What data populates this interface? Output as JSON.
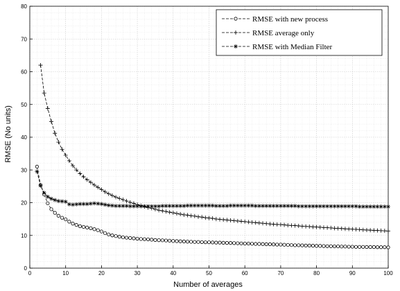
{
  "chart_data": {
    "type": "line",
    "title": "",
    "xlabel": "Number of averages",
    "ylabel": "RMSE (No units)",
    "xlim": [
      0,
      100
    ],
    "ylim": [
      0,
      80
    ],
    "xticks": [
      0,
      10,
      20,
      30,
      40,
      50,
      60,
      70,
      80,
      90,
      100
    ],
    "yticks": [
      0,
      10,
      20,
      30,
      40,
      50,
      60,
      70,
      80
    ],
    "grid": "major and minor, dotted",
    "legend_position": "top-right",
    "series": [
      {
        "name": "RMSE with new process",
        "marker": "circle",
        "line": "dashed",
        "color": "#000000",
        "x": [
          2,
          3,
          4,
          5,
          6,
          7,
          8,
          9,
          10,
          11,
          12,
          13,
          14,
          15,
          16,
          17,
          18,
          19,
          20,
          21,
          22,
          23,
          24,
          25,
          26,
          27,
          28,
          29,
          30,
          31,
          32,
          33,
          34,
          35,
          36,
          37,
          38,
          39,
          40,
          41,
          42,
          43,
          44,
          45,
          46,
          47,
          48,
          49,
          50,
          51,
          52,
          53,
          54,
          55,
          56,
          57,
          58,
          59,
          60,
          61,
          62,
          63,
          64,
          65,
          66,
          67,
          68,
          69,
          70,
          71,
          72,
          73,
          74,
          75,
          76,
          77,
          78,
          79,
          80,
          81,
          82,
          83,
          84,
          85,
          86,
          87,
          88,
          89,
          90,
          91,
          92,
          93,
          94,
          95,
          96,
          97,
          98,
          99,
          100
        ],
        "y": [
          31.0,
          25.4,
          22.5,
          19.8,
          18.0,
          16.9,
          16.0,
          15.4,
          14.9,
          14.2,
          13.6,
          13.2,
          12.8,
          12.6,
          12.4,
          12.2,
          11.9,
          11.6,
          11.2,
          10.7,
          10.3,
          10.0,
          9.8,
          9.6,
          9.4,
          9.3,
          9.2,
          9.1,
          9.0,
          8.9,
          8.85,
          8.8,
          8.7,
          8.6,
          8.55,
          8.5,
          8.45,
          8.4,
          8.3,
          8.25,
          8.2,
          8.15,
          8.1,
          8.05,
          8.0,
          8.0,
          7.95,
          7.9,
          7.9,
          7.85,
          7.8,
          7.8,
          7.75,
          7.7,
          7.7,
          7.65,
          7.6,
          7.55,
          7.5,
          7.5,
          7.45,
          7.4,
          7.4,
          7.35,
          7.3,
          7.3,
          7.25,
          7.2,
          7.2,
          7.15,
          7.1,
          7.05,
          7.0,
          7.0,
          6.95,
          6.9,
          6.9,
          6.85,
          6.8,
          6.8,
          6.75,
          6.7,
          6.7,
          6.65,
          6.65,
          6.6,
          6.6,
          6.55,
          6.55,
          6.5,
          6.5,
          6.5,
          6.45,
          6.45,
          6.45,
          6.4,
          6.4,
          6.4,
          6.35
        ]
      },
      {
        "name": "RMSE average only",
        "marker": "plus",
        "line": "dashed",
        "color": "#000000",
        "x": [
          3,
          4,
          5,
          6,
          7,
          8,
          9,
          10,
          11,
          12,
          13,
          14,
          15,
          16,
          17,
          18,
          19,
          20,
          21,
          22,
          23,
          24,
          25,
          26,
          27,
          28,
          29,
          30,
          31,
          32,
          33,
          34,
          35,
          36,
          37,
          38,
          39,
          40,
          41,
          42,
          43,
          44,
          45,
          46,
          47,
          48,
          49,
          50,
          51,
          52,
          53,
          54,
          55,
          56,
          57,
          58,
          59,
          60,
          61,
          62,
          63,
          64,
          65,
          66,
          67,
          68,
          69,
          70,
          71,
          72,
          73,
          74,
          75,
          76,
          77,
          78,
          79,
          80,
          81,
          82,
          83,
          84,
          85,
          86,
          87,
          88,
          89,
          90,
          91,
          92,
          93,
          94,
          95,
          96,
          97,
          98,
          99,
          100
        ],
        "y": [
          62.0,
          53.5,
          48.8,
          44.8,
          41.2,
          38.5,
          36.3,
          34.5,
          32.8,
          31.3,
          30.0,
          28.9,
          27.9,
          27.0,
          26.2,
          25.4,
          24.7,
          24.0,
          23.3,
          22.7,
          22.2,
          21.7,
          21.3,
          20.9,
          20.5,
          20.1,
          19.8,
          19.4,
          19.1,
          18.8,
          18.5,
          18.3,
          18.0,
          17.7,
          17.5,
          17.3,
          17.1,
          16.9,
          16.7,
          16.5,
          16.3,
          16.2,
          16.0,
          15.9,
          15.7,
          15.6,
          15.4,
          15.3,
          15.2,
          15.0,
          14.9,
          14.8,
          14.7,
          14.6,
          14.5,
          14.4,
          14.3,
          14.2,
          14.1,
          14.0,
          13.9,
          13.8,
          13.7,
          13.6,
          13.5,
          13.4,
          13.35,
          13.3,
          13.2,
          13.1,
          13.05,
          13.0,
          12.9,
          12.8,
          12.75,
          12.7,
          12.6,
          12.55,
          12.5,
          12.4,
          12.35,
          12.3,
          12.2,
          12.15,
          12.1,
          12.0,
          11.95,
          11.9,
          11.85,
          11.8,
          11.7,
          11.65,
          11.6,
          11.55,
          11.5,
          11.45,
          11.4,
          11.3
        ]
      },
      {
        "name": "RMSE with Median Filter",
        "marker": "asterisk",
        "line": "dashed",
        "color": "#000000",
        "x": [
          2,
          3,
          4,
          5,
          6,
          7,
          8,
          9,
          10,
          11,
          12,
          13,
          14,
          15,
          16,
          17,
          18,
          19,
          20,
          21,
          22,
          23,
          24,
          25,
          26,
          27,
          28,
          29,
          30,
          31,
          32,
          33,
          34,
          35,
          36,
          37,
          38,
          39,
          40,
          41,
          42,
          43,
          44,
          45,
          46,
          47,
          48,
          49,
          50,
          51,
          52,
          53,
          54,
          55,
          56,
          57,
          58,
          59,
          60,
          61,
          62,
          63,
          64,
          65,
          66,
          67,
          68,
          69,
          70,
          71,
          72,
          73,
          74,
          75,
          76,
          77,
          78,
          79,
          80,
          81,
          82,
          83,
          84,
          85,
          86,
          87,
          88,
          89,
          90,
          91,
          92,
          93,
          94,
          95,
          96,
          97,
          98,
          99,
          100
        ],
        "y": [
          29.5,
          25.2,
          23.0,
          21.8,
          21.2,
          20.8,
          20.5,
          20.4,
          20.3,
          19.5,
          19.4,
          19.5,
          19.6,
          19.6,
          19.6,
          19.7,
          19.8,
          19.7,
          19.6,
          19.4,
          19.2,
          19.1,
          19.0,
          19.0,
          19.0,
          19.0,
          18.9,
          18.9,
          18.9,
          18.9,
          18.9,
          18.9,
          18.9,
          18.9,
          18.9,
          19.0,
          19.0,
          19.0,
          19.0,
          19.0,
          19.0,
          19.0,
          19.1,
          19.1,
          19.1,
          19.1,
          19.1,
          19.1,
          19.1,
          19.1,
          19.0,
          19.0,
          19.0,
          19.0,
          19.1,
          19.1,
          19.1,
          19.1,
          19.1,
          19.1,
          19.1,
          19.0,
          19.0,
          19.0,
          19.0,
          19.0,
          19.0,
          19.0,
          19.0,
          19.0,
          19.0,
          19.0,
          19.0,
          18.9,
          18.9,
          18.9,
          18.9,
          18.9,
          18.9,
          18.9,
          18.9,
          18.9,
          18.9,
          18.9,
          18.9,
          18.9,
          18.9,
          18.9,
          18.9,
          18.9,
          18.8,
          18.8,
          18.8,
          18.8,
          18.8,
          18.8,
          18.8,
          18.8,
          18.8
        ]
      }
    ]
  }
}
